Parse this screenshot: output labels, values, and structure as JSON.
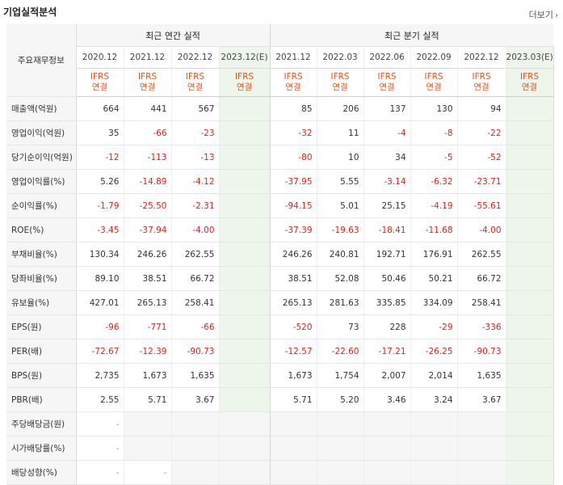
{
  "title": "기업실적분석",
  "more": "더보기",
  "headers": {
    "row_label": "주요재무정보",
    "annual_group": "최근 연간 실적",
    "quarter_group": "최근 분기 실적",
    "annual_years": [
      "2020.12",
      "2021.12",
      "2022.12",
      "2023.12(E)"
    ],
    "quarter_periods": [
      "2021.12",
      "2022.03",
      "2022.06",
      "2022.09",
      "2022.12",
      "2023.03(E)"
    ],
    "ifrs_line1": "IFRS",
    "ifrs_line2": "연결"
  },
  "rows": [
    {
      "label": "매출액(억원)",
      "annual": [
        "664",
        "441",
        "567",
        ""
      ],
      "quarter": [
        "85",
        "206",
        "137",
        "130",
        "94",
        ""
      ]
    },
    {
      "label": "영업이익(억원)",
      "annual": [
        "35",
        "-66",
        "-23",
        ""
      ],
      "quarter": [
        "-32",
        "11",
        "-4",
        "-8",
        "-22",
        ""
      ]
    },
    {
      "label": "당기순이익(억원)",
      "annual": [
        "-12",
        "-113",
        "-13",
        ""
      ],
      "quarter": [
        "-80",
        "10",
        "34",
        "-5",
        "-52",
        ""
      ]
    },
    {
      "label": "영업이익률(%)",
      "annual": [
        "5.26",
        "-14.89",
        "-4.12",
        ""
      ],
      "quarter": [
        "-37.95",
        "5.55",
        "-3.14",
        "-6.32",
        "-23.71",
        ""
      ]
    },
    {
      "label": "순이익률(%)",
      "annual": [
        "-1.79",
        "-25.50",
        "-2.31",
        ""
      ],
      "quarter": [
        "-94.15",
        "5.01",
        "25.15",
        "-4.19",
        "-55.61",
        ""
      ]
    },
    {
      "label": "ROE(%)",
      "annual": [
        "-3.45",
        "-37.94",
        "-4.00",
        ""
      ],
      "quarter": [
        "-37.39",
        "-19.63",
        "-18.41",
        "-11.68",
        "-4.00",
        ""
      ]
    },
    {
      "label": "부채비율(%)",
      "annual": [
        "130.34",
        "246.26",
        "262.55",
        ""
      ],
      "quarter": [
        "246.26",
        "240.81",
        "192.71",
        "176.91",
        "262.55",
        ""
      ]
    },
    {
      "label": "당좌비율(%)",
      "annual": [
        "89.10",
        "38.51",
        "66.72",
        ""
      ],
      "quarter": [
        "38.51",
        "52.08",
        "50.46",
        "50.21",
        "66.72",
        ""
      ]
    },
    {
      "label": "유보율(%)",
      "annual": [
        "427.01",
        "265.13",
        "258.41",
        ""
      ],
      "quarter": [
        "265.13",
        "281.63",
        "335.85",
        "334.09",
        "258.41",
        ""
      ]
    },
    {
      "label": "EPS(원)",
      "annual": [
        "-96",
        "-771",
        "-66",
        ""
      ],
      "quarter": [
        "-520",
        "73",
        "228",
        "-29",
        "-336",
        ""
      ]
    },
    {
      "label": "PER(배)",
      "annual": [
        "-72.67",
        "-12.39",
        "-90.73",
        ""
      ],
      "quarter": [
        "-12.57",
        "-22.60",
        "-17.21",
        "-26.25",
        "-90.73",
        ""
      ]
    },
    {
      "label": "BPS(원)",
      "annual": [
        "2,735",
        "1,673",
        "1,635",
        ""
      ],
      "quarter": [
        "1,673",
        "1,754",
        "2,007",
        "2,014",
        "1,635",
        ""
      ]
    },
    {
      "label": "PBR(배)",
      "annual": [
        "2.55",
        "5.71",
        "3.67",
        ""
      ],
      "quarter": [
        "5.71",
        "5.20",
        "3.46",
        "3.24",
        "3.67",
        ""
      ]
    },
    {
      "label": "주당배당금(원)",
      "annual": [
        "-",
        "",
        "",
        ""
      ],
      "quarter": [
        "",
        "",
        "",
        "",
        "",
        ""
      ]
    },
    {
      "label": "시가배당률(%)",
      "annual": [
        "-",
        "",
        "",
        ""
      ],
      "quarter": [
        "",
        "",
        "",
        "",
        "",
        ""
      ]
    },
    {
      "label": "배당성향(%)",
      "annual": [
        "-",
        "-",
        "",
        ""
      ],
      "quarter": [
        "",
        "",
        "",
        "",
        "",
        ""
      ]
    }
  ],
  "colors": {
    "negative": "#e2231a",
    "accent": "#e8541b",
    "estimate_bg": "#eef5ea"
  }
}
